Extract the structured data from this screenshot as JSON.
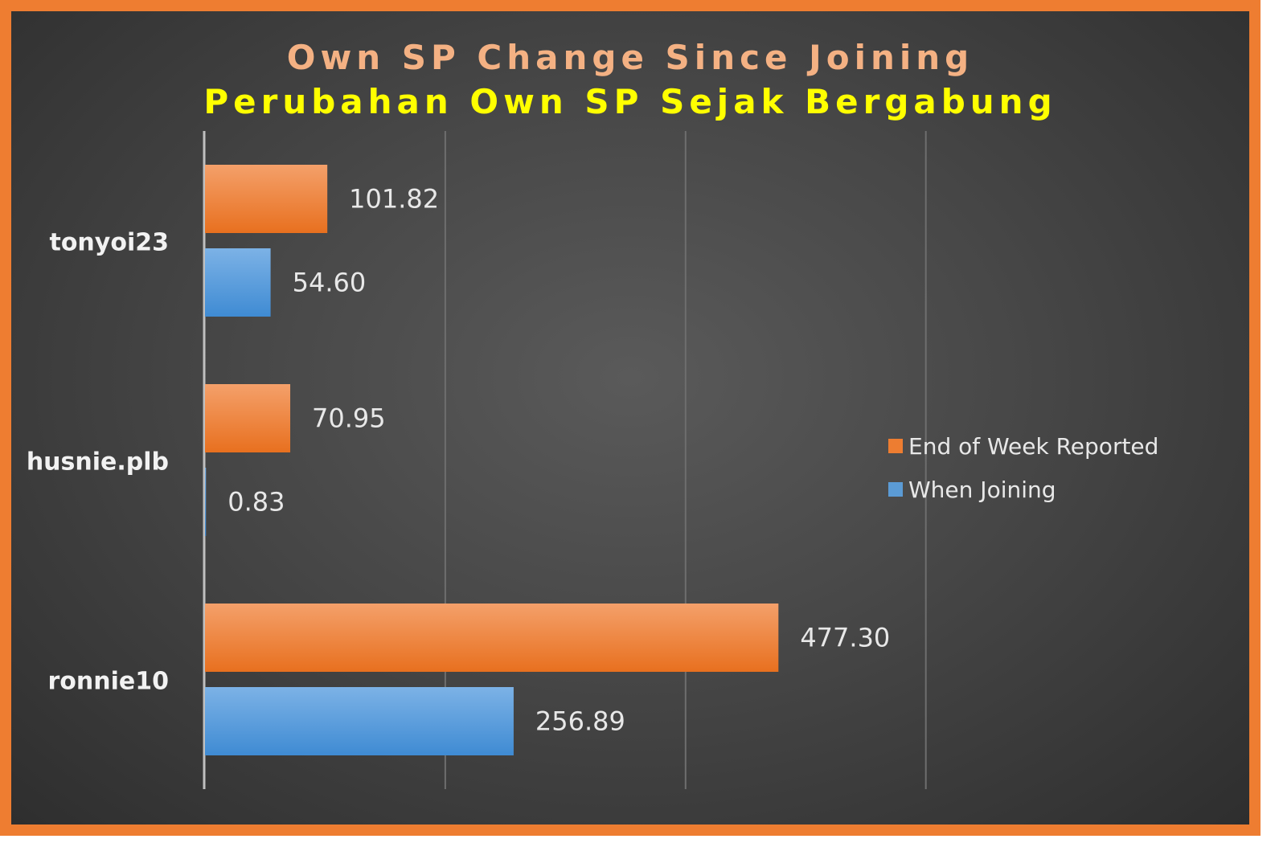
{
  "chart_data": {
    "type": "bar",
    "orientation": "horizontal",
    "title": "Own SP Change Since Joining",
    "subtitle": "Perubahan Own SP Sejak Bergabung",
    "categories": [
      "tonyoi23",
      "husnie.plb",
      "ronnie10"
    ],
    "series": [
      {
        "name": "End of Week Reported",
        "color": "#ed7d31",
        "values": [
          101.82,
          70.95,
          477.3
        ],
        "labels": [
          "101.82",
          "70.95",
          "477.30"
        ]
      },
      {
        "name": "When Joining",
        "color": "#5b9bd5",
        "values": [
          54.6,
          0.83,
          256.89
        ],
        "labels": [
          "54.60",
          "0.83",
          "256.89"
        ]
      }
    ],
    "xlim": [
      0,
      800
    ],
    "grid": true,
    "legend_position": "right",
    "frame_color": "#ee7d31"
  }
}
